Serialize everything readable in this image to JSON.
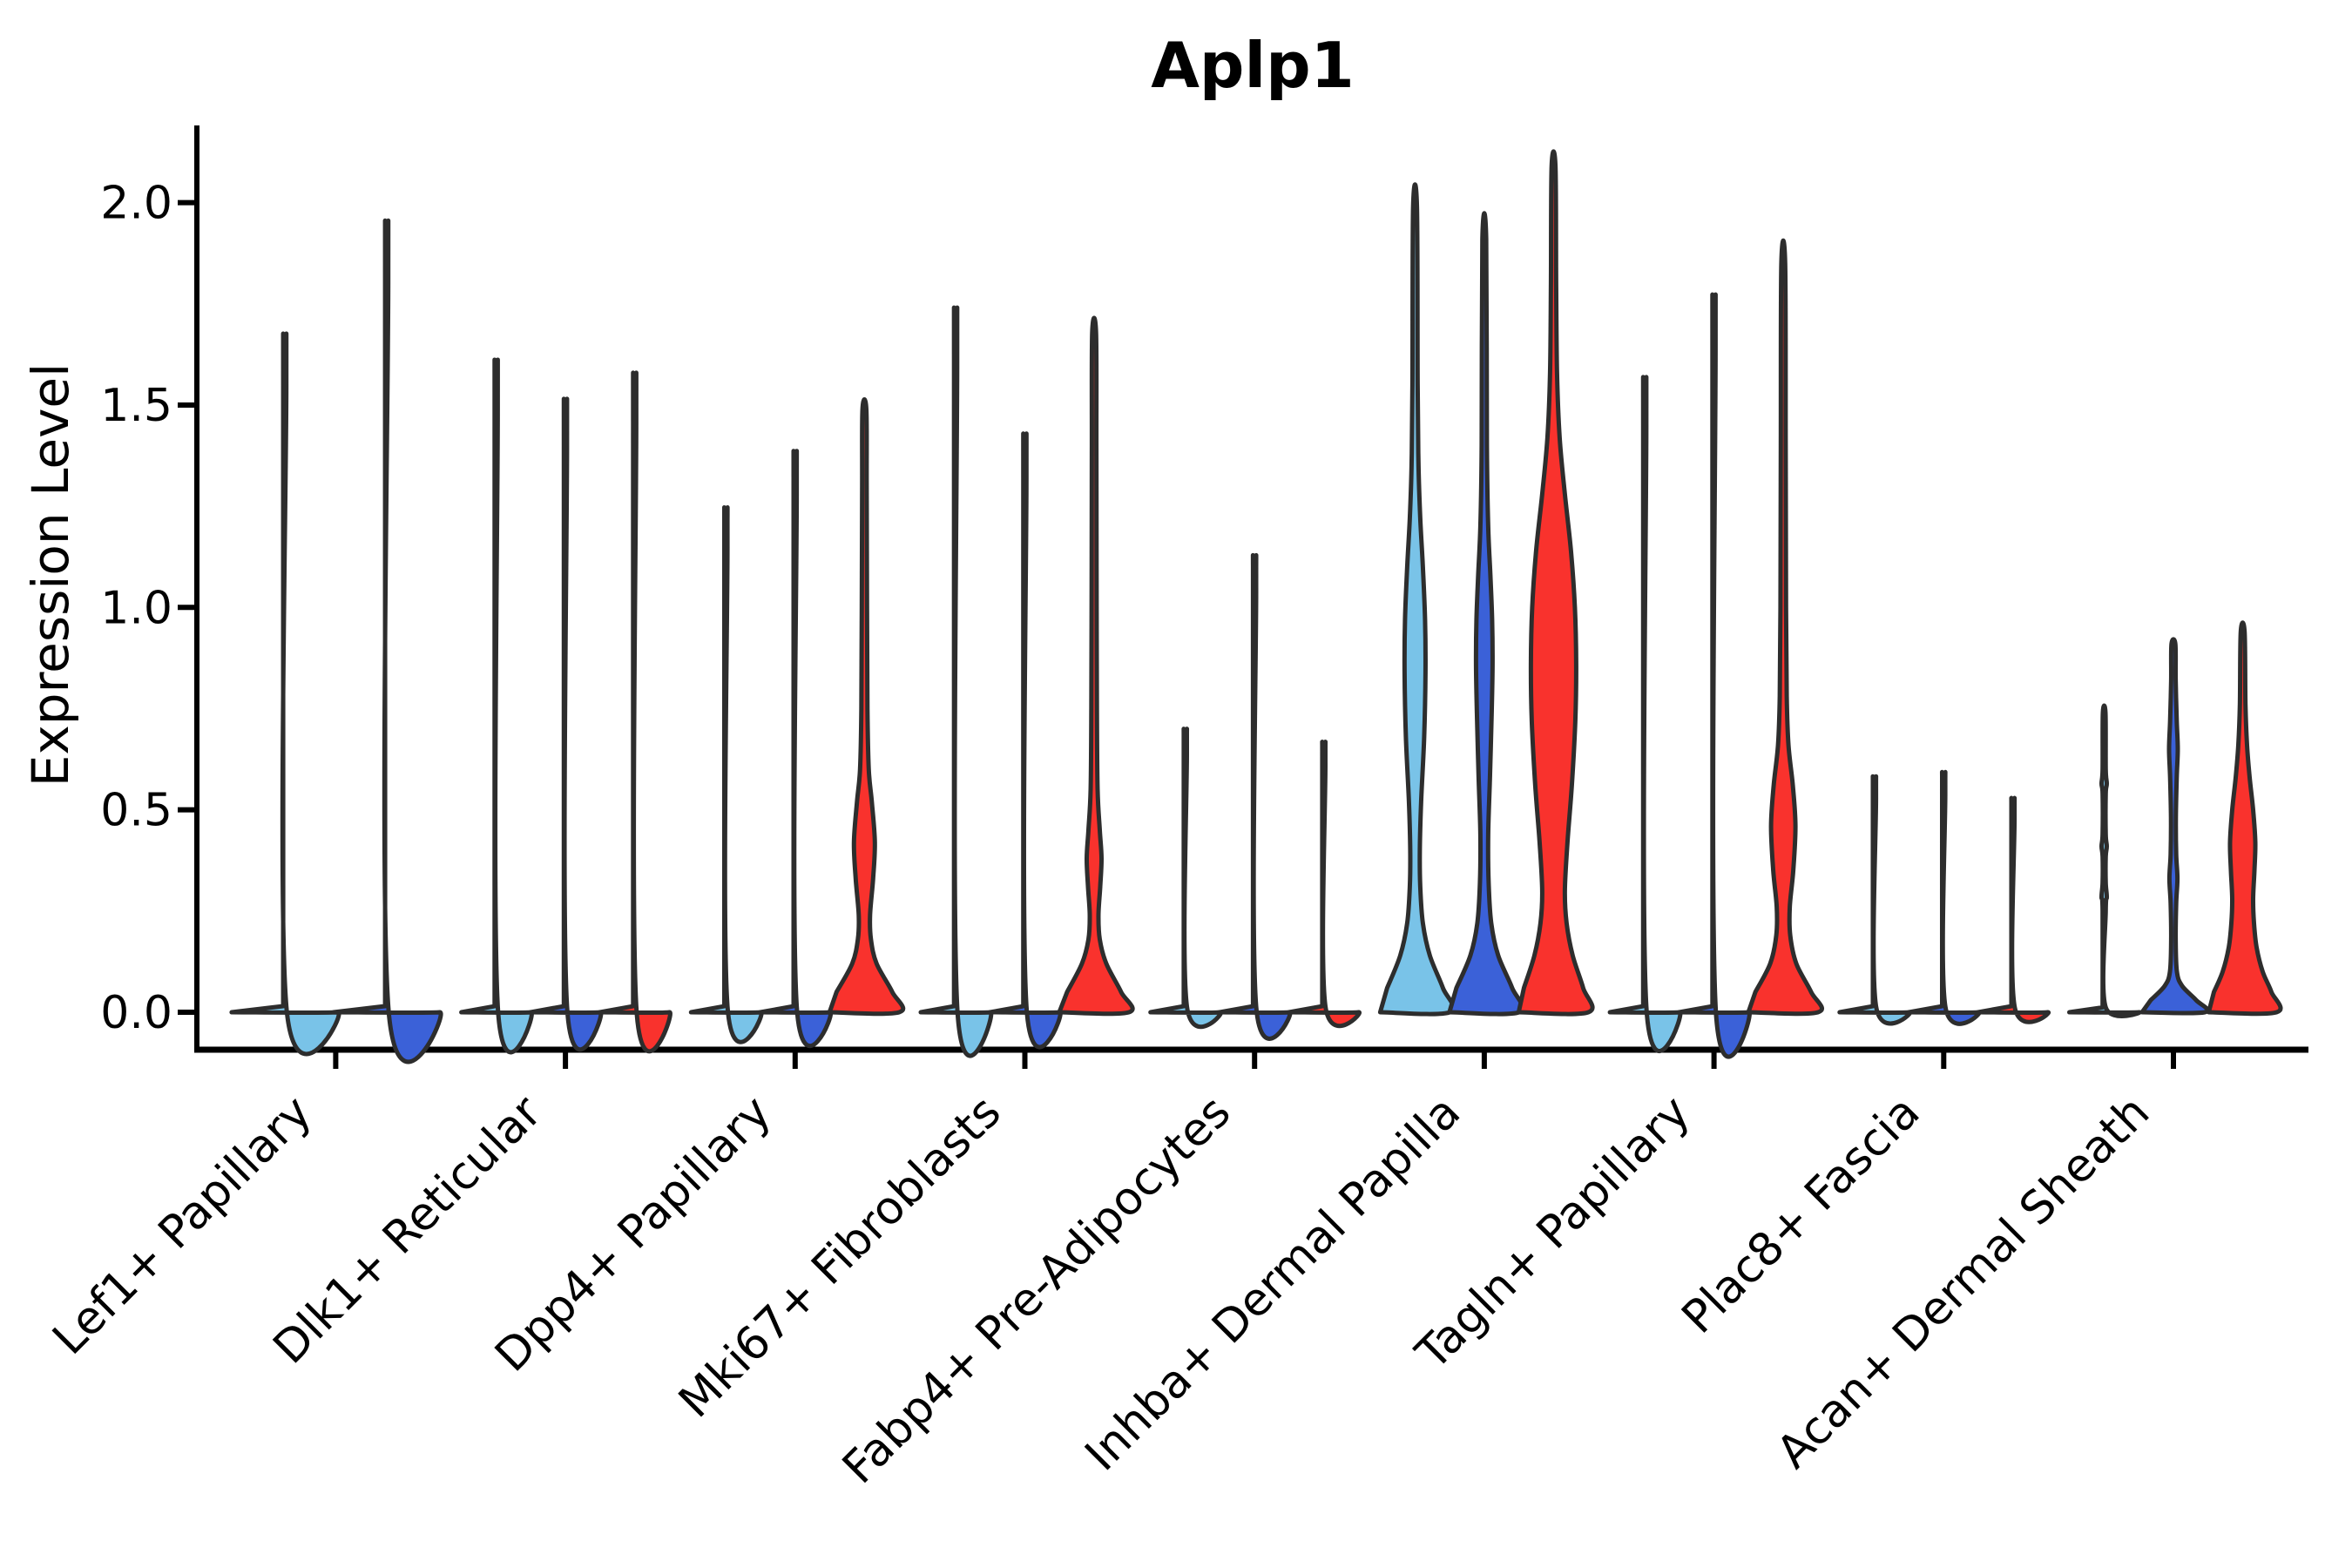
{
  "title": "Aplp1",
  "y_axis": {
    "label": "Expression Level",
    "tick_labels": [
      "0.0",
      "0.5",
      "1.0",
      "1.5",
      "2.0"
    ],
    "tick_values": [
      0.0,
      0.5,
      1.0,
      1.5,
      2.0
    ]
  },
  "colors": {
    "c1": "#79C3E8",
    "c2": "#3B61D8",
    "c3": "#F9322D",
    "outline": "#2d2d2d",
    "axis": "#000000"
  },
  "chart_data": {
    "type": "violin",
    "title": "Aplp1",
    "xlabel": "",
    "ylabel": "Expression Level",
    "ylim": [
      -0.09,
      2.19
    ],
    "grid": false,
    "legend": "none",
    "categories": [
      "Lef1+ Papillary",
      "Dlk1+ Reticular",
      "Dpp4+ Papillary",
      "Mki67+ Fibroblasts",
      "Fabp4+ Pre-Adipocytes",
      "Inhba+ Dermal Papilla",
      "Tagln+ Papillary",
      "Plac8+ Fascia",
      "Acan+ Dermal Sheath"
    ],
    "expression_max_per_violin": [
      [
        1.59,
        1.85
      ],
      [
        1.53,
        1.44,
        1.5
      ],
      [
        1.19,
        1.32,
        1.49
      ],
      [
        1.65,
        1.36,
        1.68
      ],
      [
        0.68,
        1.08,
        0.65
      ],
      [
        1.99,
        1.91,
        2.09
      ],
      [
        1.49,
        1.68,
        1.85
      ],
      [
        0.57,
        0.58,
        0.52
      ],
      [
        0.74,
        0.91,
        0.94
      ]
    ],
    "groups": [
      {
        "label": "Lef1+ Papillary",
        "violins": [
          {
            "color": "c1",
            "max": 1.59,
            "profile": [
              [
                0,
                61
              ],
              [
                0.015,
                1.8
              ],
              [
                1.55,
                1.8
              ],
              [
                1.59,
                1.5
              ]
            ]
          },
          {
            "color": "c2",
            "max": 1.85,
            "profile": [
              [
                0,
                61
              ],
              [
                0.015,
                1.8
              ],
              [
                1.81,
                1.8
              ],
              [
                1.85,
                1.5
              ]
            ]
          }
        ]
      },
      {
        "label": "Dlk1+ Reticular",
        "violins": [
          {
            "color": "c1",
            "max": 1.53,
            "profile": [
              [
                0,
                40
              ],
              [
                0.015,
                1.8
              ],
              [
                1.49,
                1.8
              ],
              [
                1.53,
                1.5
              ]
            ]
          },
          {
            "color": "c2",
            "max": 1.44,
            "profile": [
              [
                0,
                40
              ],
              [
                0.015,
                1.8
              ],
              [
                1.4,
                1.8
              ],
              [
                1.44,
                1.5
              ]
            ]
          },
          {
            "color": "c3",
            "max": 1.5,
            "profile": [
              [
                0,
                40
              ],
              [
                0.015,
                1.8
              ],
              [
                1.46,
                1.8
              ],
              [
                1.5,
                1.5
              ]
            ]
          }
        ]
      },
      {
        "label": "Dpp4+ Papillary",
        "violins": [
          {
            "color": "c1",
            "max": 1.19,
            "profile": [
              [
                0,
                40
              ],
              [
                0.015,
                1.8
              ],
              [
                1.15,
                1.8
              ],
              [
                1.19,
                1.5
              ]
            ]
          },
          {
            "color": "c2",
            "max": 1.32,
            "profile": [
              [
                0,
                40
              ],
              [
                0.015,
                1.8
              ],
              [
                1.28,
                1.8
              ],
              [
                1.32,
                1.5
              ]
            ]
          },
          {
            "color": "c3",
            "max": 1.49,
            "profile": [
              [
                0,
                40
              ],
              [
                0.05,
                32
              ],
              [
                0.12,
                14
              ],
              [
                0.18,
                7.5
              ],
              [
                0.24,
                6.5
              ],
              [
                0.33,
                10
              ],
              [
                0.42,
                12
              ],
              [
                0.52,
                8.5
              ],
              [
                0.6,
                5
              ],
              [
                0.75,
                3.5
              ],
              [
                1.0,
                3
              ],
              [
                1.3,
                2.6
              ],
              [
                1.49,
                2.2
              ]
            ]
          }
        ]
      },
      {
        "label": "Mki67+ Fibroblasts",
        "violins": [
          {
            "color": "c1",
            "max": 1.65,
            "profile": [
              [
                0,
                40
              ],
              [
                0.015,
                1.8
              ],
              [
                1.61,
                1.8
              ],
              [
                1.65,
                1.5
              ]
            ]
          },
          {
            "color": "c2",
            "max": 1.36,
            "profile": [
              [
                0,
                40
              ],
              [
                0.015,
                1.8
              ],
              [
                1.32,
                1.8
              ],
              [
                1.36,
                1.5
              ]
            ]
          },
          {
            "color": "c3",
            "max": 1.68,
            "profile": [
              [
                0,
                40
              ],
              [
                0.05,
                31
              ],
              [
                0.12,
                14
              ],
              [
                0.18,
                6.5
              ],
              [
                0.24,
                5
              ],
              [
                0.31,
                7
              ],
              [
                0.38,
                8.5
              ],
              [
                0.45,
                6.5
              ],
              [
                0.55,
                4
              ],
              [
                0.75,
                3.2
              ],
              [
                1.1,
                2.8
              ],
              [
                1.4,
                2.6
              ],
              [
                1.68,
                2.2
              ]
            ]
          }
        ]
      },
      {
        "label": "Fabp4+ Pre-Adipocytes",
        "violins": [
          {
            "color": "c1",
            "max": 0.68,
            "profile": [
              [
                0,
                40
              ],
              [
                0.015,
                1.8
              ],
              [
                0.64,
                1.8
              ],
              [
                0.68,
                1.5
              ]
            ]
          },
          {
            "color": "c2",
            "max": 1.08,
            "profile": [
              [
                0,
                40
              ],
              [
                0.015,
                1.8
              ],
              [
                1.04,
                1.8
              ],
              [
                1.08,
                1.5
              ]
            ]
          },
          {
            "color": "c3",
            "max": 0.65,
            "profile": [
              [
                0,
                40
              ],
              [
                0.015,
                1.8
              ],
              [
                0.61,
                1.8
              ],
              [
                0.65,
                1.5
              ]
            ]
          }
        ]
      },
      {
        "label": "Inhba+ Dermal Papilla",
        "violins": [
          {
            "color": "c1",
            "max": 1.99,
            "profile": [
              [
                0,
                40
              ],
              [
                0.06,
                32
              ],
              [
                0.14,
                17
              ],
              [
                0.22,
                9
              ],
              [
                0.31,
                6
              ],
              [
                0.4,
                5.5
              ],
              [
                0.52,
                7
              ],
              [
                0.68,
                10.5
              ],
              [
                0.84,
                12
              ],
              [
                0.97,
                11.5
              ],
              [
                1.1,
                9
              ],
              [
                1.22,
                6
              ],
              [
                1.35,
                4
              ],
              [
                1.55,
                3
              ],
              [
                1.99,
                2.2
              ]
            ]
          },
          {
            "color": "c2",
            "max": 1.91,
            "profile": [
              [
                0,
                40
              ],
              [
                0.06,
                32
              ],
              [
                0.14,
                16
              ],
              [
                0.22,
                8
              ],
              [
                0.32,
                5
              ],
              [
                0.44,
                4.5
              ],
              [
                0.58,
                6.5
              ],
              [
                0.74,
                8.5
              ],
              [
                0.86,
                9.5
              ],
              [
                0.97,
                9
              ],
              [
                1.08,
                7
              ],
              [
                1.2,
                4.5
              ],
              [
                1.4,
                3
              ],
              [
                1.91,
                2.2
              ]
            ]
          },
          {
            "color": "c3",
            "max": 2.09,
            "profile": [
              [
                0,
                40
              ],
              [
                0.06,
                34
              ],
              [
                0.14,
                22
              ],
              [
                0.22,
                15
              ],
              [
                0.3,
                13
              ],
              [
                0.42,
                16
              ],
              [
                0.56,
                21
              ],
              [
                0.72,
                25
              ],
              [
                0.86,
                26
              ],
              [
                1.0,
                24.5
              ],
              [
                1.14,
                20
              ],
              [
                1.28,
                13
              ],
              [
                1.42,
                7
              ],
              [
                1.58,
                4
              ],
              [
                1.8,
                3
              ],
              [
                2.09,
                2.2
              ]
            ]
          }
        ]
      },
      {
        "label": "Tagln+ Papillary",
        "violins": [
          {
            "color": "c1",
            "max": 1.49,
            "profile": [
              [
                0,
                40
              ],
              [
                0.015,
                1.8
              ],
              [
                1.45,
                1.8
              ],
              [
                1.49,
                1.5
              ]
            ]
          },
          {
            "color": "c2",
            "max": 1.68,
            "profile": [
              [
                0,
                40
              ],
              [
                0.015,
                1.8
              ],
              [
                1.64,
                1.8
              ],
              [
                1.68,
                1.5
              ]
            ]
          },
          {
            "color": "c3",
            "max": 1.85,
            "profile": [
              [
                0,
                40
              ],
              [
                0.05,
                32
              ],
              [
                0.12,
                15
              ],
              [
                0.19,
                8
              ],
              [
                0.26,
                7.5
              ],
              [
                0.35,
                11.5
              ],
              [
                0.46,
                14
              ],
              [
                0.56,
                11
              ],
              [
                0.66,
                6
              ],
              [
                0.78,
                4
              ],
              [
                1.0,
                3.2
              ],
              [
                1.4,
                2.8
              ],
              [
                1.85,
                2.2
              ]
            ]
          }
        ]
      },
      {
        "label": "Plac8+ Fascia",
        "violins": [
          {
            "color": "c1",
            "max": 0.57,
            "profile": [
              [
                0,
                40
              ],
              [
                0.015,
                1.8
              ],
              [
                0.53,
                1.8
              ],
              [
                0.57,
                1.5
              ]
            ]
          },
          {
            "color": "c2",
            "max": 0.58,
            "profile": [
              [
                0,
                40
              ],
              [
                0.015,
                1.8
              ],
              [
                0.54,
                1.8
              ],
              [
                0.58,
                1.5
              ]
            ]
          },
          {
            "color": "c3",
            "max": 0.52,
            "profile": [
              [
                0,
                40
              ],
              [
                0.015,
                1.8
              ],
              [
                0.48,
                1.8
              ],
              [
                0.52,
                1.5
              ]
            ]
          }
        ]
      },
      {
        "label": "Acan+ Dermal Sheath",
        "violins": [
          {
            "color": "c1",
            "max": 0.74,
            "profile": [
              [
                0,
                40
              ],
              [
                0.012,
                1.8
              ],
              [
                0.25,
                1.8
              ],
              [
                0.285,
                3
              ],
              [
                0.32,
                1.8
              ],
              [
                0.385,
                1.8
              ],
              [
                0.41,
                3
              ],
              [
                0.44,
                1.8
              ],
              [
                0.54,
                1.8
              ],
              [
                0.565,
                3
              ],
              [
                0.6,
                1.8
              ],
              [
                0.74,
                1.5
              ]
            ]
          },
          {
            "color": "c2",
            "max": 0.91,
            "profile": [
              [
                0,
                36
              ],
              [
                0.03,
                26
              ],
              [
                0.065,
                10
              ],
              [
                0.1,
                4
              ],
              [
                0.18,
                2.6
              ],
              [
                0.27,
                3.2
              ],
              [
                0.33,
                4.6
              ],
              [
                0.39,
                3.2
              ],
              [
                0.48,
                2.8
              ],
              [
                0.58,
                3.8
              ],
              [
                0.65,
                5
              ],
              [
                0.72,
                3.8
              ],
              [
                0.82,
                2.6
              ],
              [
                0.91,
                2.2
              ]
            ]
          },
          {
            "color": "c3",
            "max": 0.94,
            "profile": [
              [
                0,
                39
              ],
              [
                0.05,
                33
              ],
              [
                0.1,
                23
              ],
              [
                0.16,
                16
              ],
              [
                0.22,
                13
              ],
              [
                0.28,
                12
              ],
              [
                0.35,
                13.5
              ],
              [
                0.42,
                14.5
              ],
              [
                0.5,
                12
              ],
              [
                0.58,
                8
              ],
              [
                0.66,
                5
              ],
              [
                0.76,
                3.2
              ],
              [
                0.94,
                2.2
              ]
            ]
          }
        ]
      }
    ]
  }
}
